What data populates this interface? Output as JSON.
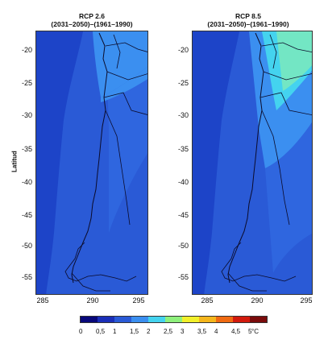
{
  "panels": [
    {
      "title": "RCP 2.6",
      "subtitle": "(2031–2050)–(1961–1990)"
    },
    {
      "title": "RCP 8.5",
      "subtitle": "(2031–2050)–(1961–1990)"
    }
  ],
  "axes": {
    "ylabel": "Latitud",
    "yticks": [
      "-20",
      "-25",
      "-30",
      "-35",
      "-40",
      "-45",
      "-50",
      "-55"
    ],
    "xticks": [
      "285",
      "290",
      "295"
    ]
  },
  "colorbar": {
    "labels": [
      "0",
      "0,5",
      "1",
      "1,5",
      "2",
      "2,5",
      "3",
      "3,5",
      "4",
      "4,5",
      "5"
    ],
    "unit": "°C",
    "colors": [
      "#08087a",
      "#1a2fb8",
      "#2a5ad6",
      "#3b8ff0",
      "#44d3ef",
      "#8ef07c",
      "#f2f02a",
      "#f5b61c",
      "#f06a12",
      "#d21a0d",
      "#7a0b0b"
    ]
  }
}
